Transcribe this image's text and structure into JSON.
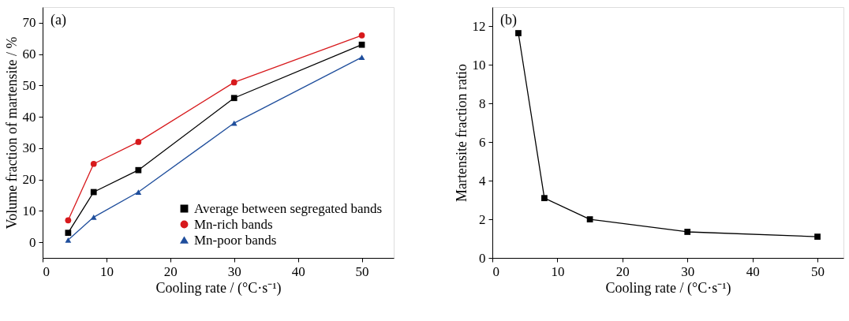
{
  "chart_data": [
    {
      "type": "line",
      "ylabel": "Volume fraction of martensite / %",
      "xlabel": "Cooling rate / (°C·s⁻¹)",
      "annotations": [
        "(a)"
      ],
      "x": [
        4,
        8,
        15,
        30,
        50
      ],
      "xlim": [
        0,
        55
      ],
      "xticks": [
        0,
        10,
        20,
        30,
        40,
        50
      ],
      "ylim": [
        -5,
        75
      ],
      "yticks": [
        0,
        10,
        20,
        30,
        40,
        50,
        60,
        70
      ],
      "grid": false,
      "legend": "bottom right",
      "line_style": "solid",
      "series": [
        {
          "name": "Average between segregated bands",
          "color": "#000000",
          "marker": "square",
          "values": [
            3,
            16,
            23,
            46,
            63
          ]
        },
        {
          "name": "Mn-rich bands",
          "color": "#d7191c",
          "marker": "circle",
          "values": [
            7,
            25,
            32,
            51,
            66
          ]
        },
        {
          "name": "Mn-poor bands",
          "color": "#1f4e9c",
          "marker": "triangle",
          "values": [
            0.7,
            8,
            16,
            38,
            59
          ]
        }
      ]
    },
    {
      "type": "line",
      "ylabel": "Martensite fraction ratio",
      "xlabel": "Cooling rate / (°C·s⁻¹)",
      "annotations": [
        "(b)"
      ],
      "x": [
        4,
        8,
        15,
        30,
        50
      ],
      "xlim": [
        0,
        54
      ],
      "xticks": [
        0,
        10,
        20,
        30,
        40,
        50
      ],
      "ylim": [
        0,
        13
      ],
      "yticks": [
        0,
        2,
        4,
        6,
        8,
        10,
        12
      ],
      "grid": false,
      "legend": false,
      "marker": "square",
      "line_style": "solid",
      "series": [
        {
          "color": "#000000",
          "values": [
            11.65,
            3.1,
            2.0,
            1.35,
            1.1
          ]
        }
      ]
    }
  ]
}
